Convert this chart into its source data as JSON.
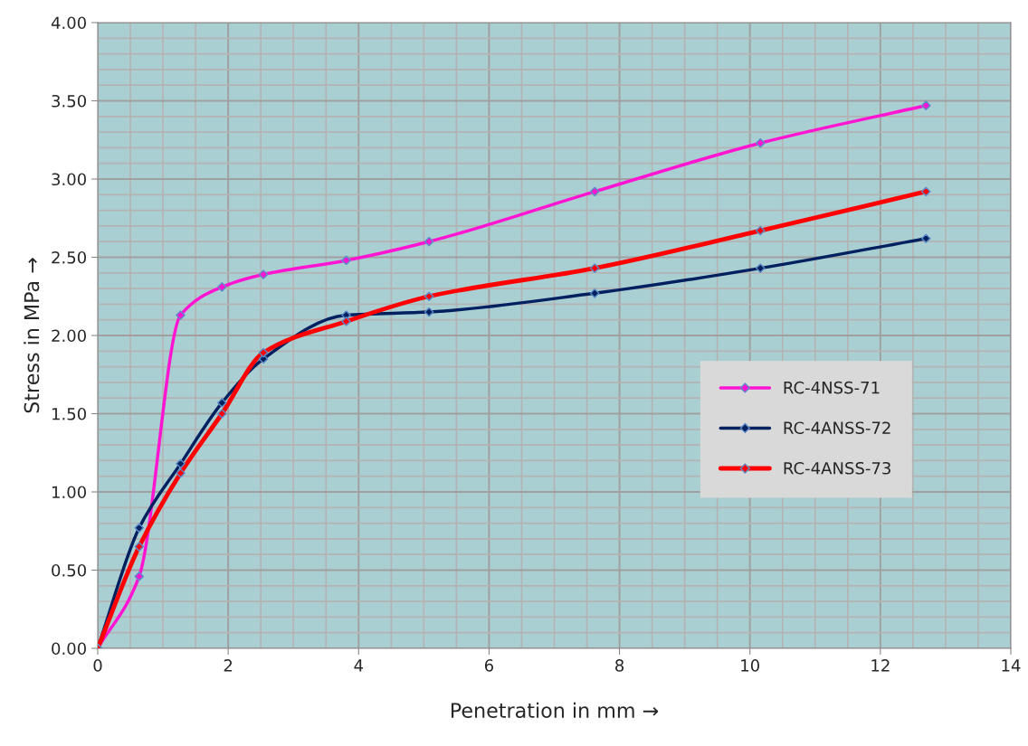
{
  "chart_data": {
    "type": "line",
    "xlabel": "Penetration in mm →",
    "ylabel": "Stress in MPa →",
    "x": [
      0,
      0.635,
      1.27,
      1.905,
      2.54,
      3.81,
      5.08,
      7.62,
      10.16,
      12.7
    ],
    "series": [
      {
        "name": "RC-4NSS-71",
        "color": "#ff14d2",
        "values": [
          0,
          0.46,
          2.13,
          2.31,
          2.39,
          2.48,
          2.6,
          2.92,
          3.23,
          3.47
        ]
      },
      {
        "name": "RC-4ANSS-72",
        "color": "#002060",
        "values": [
          0,
          0.77,
          1.18,
          1.57,
          1.85,
          2.13,
          2.15,
          2.27,
          2.43,
          2.62
        ]
      },
      {
        "name": "RC-4ANSS-73",
        "color": "#ff0000",
        "values": [
          0,
          0.65,
          1.12,
          1.5,
          1.89,
          2.09,
          2.25,
          2.43,
          2.67,
          2.92
        ]
      }
    ],
    "xlim": [
      0,
      14
    ],
    "xticks": [
      0,
      2,
      4,
      6,
      8,
      10,
      12,
      14
    ],
    "ylim": [
      0,
      4
    ],
    "yticks": [
      {
        "value": 0,
        "label": "0.00"
      },
      {
        "value": 0.5,
        "label": "0.50"
      },
      {
        "value": 1,
        "label": "1.00"
      },
      {
        "value": 1.5,
        "label": "1.50"
      },
      {
        "value": 2,
        "label": "2.00"
      },
      {
        "value": 2.5,
        "label": "2.50"
      },
      {
        "value": 3,
        "label": "3.00"
      },
      {
        "value": 3.5,
        "label": "3.50"
      },
      {
        "value": 4,
        "label": "4.00"
      }
    ],
    "grid": true,
    "legend": "right",
    "marker": "diamond",
    "line_style": "solid"
  }
}
